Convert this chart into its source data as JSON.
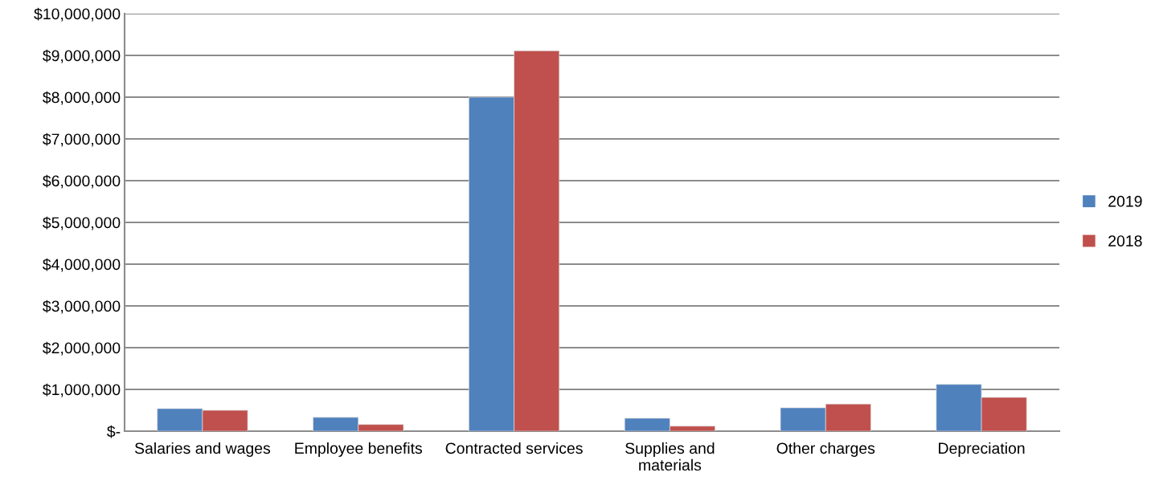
{
  "chart_data": {
    "type": "bar",
    "categories": [
      "Salaries and wages",
      "Employee benefits",
      "Contracted services",
      "Supplies and\nmaterials",
      "Other charges",
      "Depreciation"
    ],
    "series": [
      {
        "name": "2019",
        "color": "#4f81bd",
        "values": [
          540000,
          330000,
          8000000,
          310000,
          560000,
          1120000
        ]
      },
      {
        "name": "2018",
        "color": "#c0504d",
        "values": [
          500000,
          160000,
          9110000,
          120000,
          650000,
          810000
        ]
      }
    ],
    "ylim": [
      0,
      10000000
    ],
    "yticks": [
      {
        "value": 0,
        "label": "$-"
      },
      {
        "value": 1000000,
        "label": "$1,000,000"
      },
      {
        "value": 2000000,
        "label": "$2,000,000"
      },
      {
        "value": 3000000,
        "label": "$3,000,000"
      },
      {
        "value": 4000000,
        "label": "$4,000,000"
      },
      {
        "value": 5000000,
        "label": "$5,000,000"
      },
      {
        "value": 6000000,
        "label": "$6,000,000"
      },
      {
        "value": 7000000,
        "label": "$7,000,000"
      },
      {
        "value": 8000000,
        "label": "$8,000,000"
      },
      {
        "value": 9000000,
        "label": "$9,000,000"
      },
      {
        "value": 10000000,
        "label": "$10,000,000"
      }
    ],
    "grid": "y",
    "legend": "right"
  }
}
